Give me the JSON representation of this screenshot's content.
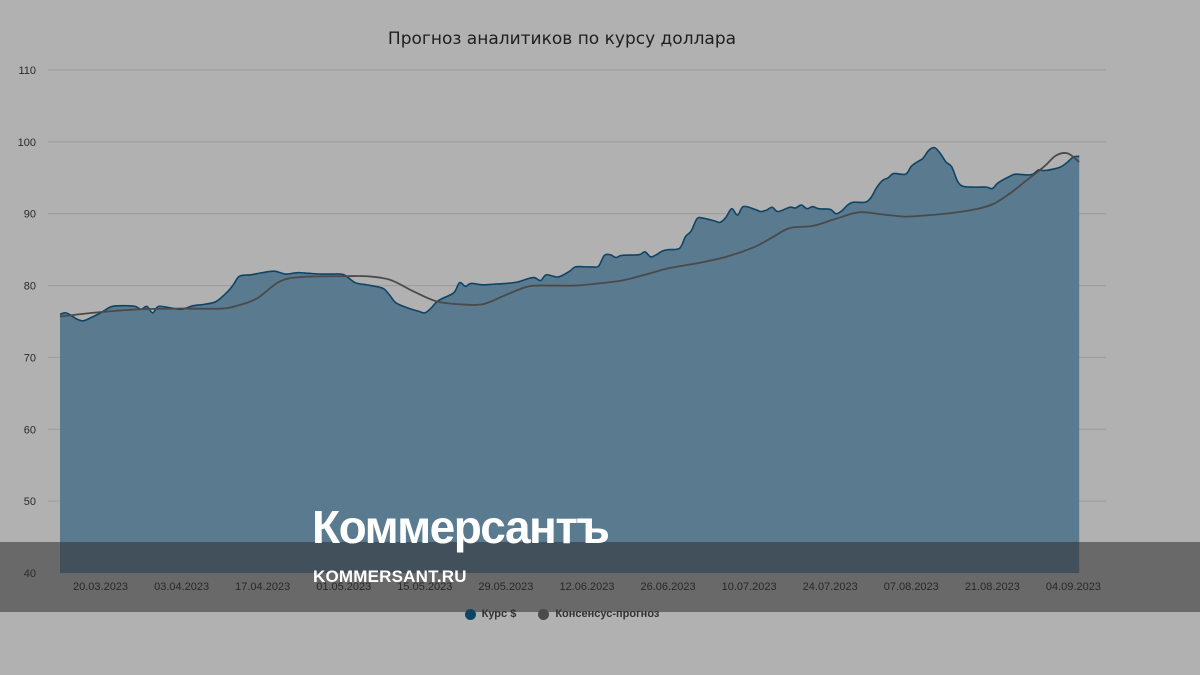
{
  "chart_data": {
    "type": "area",
    "title": "Прогноз аналитиков по курсу доллара",
    "ylim": [
      40,
      110
    ],
    "yticks": [
      40,
      50,
      60,
      70,
      80,
      90,
      100,
      110
    ],
    "grid": true,
    "legend_position": "bottom-center",
    "xtick_labels": [
      "20.03.2023",
      "03.04.2023",
      "17.04.2023",
      "01.05.2023",
      "15.05.2023",
      "29.05.2023",
      "12.06.2023",
      "26.06.2023",
      "10.07.2023",
      "24.07.2023",
      "07.08.2023",
      "21.08.2023",
      "04.09.2023"
    ],
    "x_start": "13.03.2023",
    "x_end": "06.09.2023",
    "series": [
      {
        "name": "Курс $",
        "kind": "area",
        "color": "#5a7a90",
        "line_color": "#0f4465",
        "points": [
          [
            "2023-03-13",
            76.0
          ],
          [
            "2023-03-14",
            76.2
          ],
          [
            "2023-03-15",
            75.8
          ],
          [
            "2023-03-16",
            75.3
          ],
          [
            "2023-03-17",
            75.1
          ],
          [
            "2023-03-18",
            75.4
          ],
          [
            "2023-03-20",
            76.2
          ],
          [
            "2023-03-21",
            76.7
          ],
          [
            "2023-03-22",
            77.1
          ],
          [
            "2023-03-24",
            77.2
          ],
          [
            "2023-03-26",
            77.1
          ],
          [
            "2023-03-27",
            76.7
          ],
          [
            "2023-03-28",
            77.1
          ],
          [
            "2023-03-29",
            76.2
          ],
          [
            "2023-03-30",
            77.1
          ],
          [
            "2023-04-01",
            76.9
          ],
          [
            "2023-04-03",
            76.7
          ],
          [
            "2023-04-05",
            77.2
          ],
          [
            "2023-04-07",
            77.4
          ],
          [
            "2023-04-09",
            77.8
          ],
          [
            "2023-04-11",
            79.2
          ],
          [
            "2023-04-12",
            80.2
          ],
          [
            "2023-04-13",
            81.3
          ],
          [
            "2023-04-15",
            81.5
          ],
          [
            "2023-04-17",
            81.8
          ],
          [
            "2023-04-19",
            82.0
          ],
          [
            "2023-04-21",
            81.6
          ],
          [
            "2023-04-23",
            81.8
          ],
          [
            "2023-04-25",
            81.7
          ],
          [
            "2023-04-27",
            81.6
          ],
          [
            "2023-04-29",
            81.6
          ],
          [
            "2023-05-01",
            81.5
          ],
          [
            "2023-05-03",
            80.4
          ],
          [
            "2023-05-05",
            80.1
          ],
          [
            "2023-05-07",
            79.8
          ],
          [
            "2023-05-08",
            79.5
          ],
          [
            "2023-05-09",
            78.6
          ],
          [
            "2023-05-10",
            77.6
          ],
          [
            "2023-05-12",
            76.9
          ],
          [
            "2023-05-14",
            76.4
          ],
          [
            "2023-05-15",
            76.2
          ],
          [
            "2023-05-16",
            76.8
          ],
          [
            "2023-05-17",
            77.7
          ],
          [
            "2023-05-18",
            78.2
          ],
          [
            "2023-05-20",
            79.0
          ],
          [
            "2023-05-21",
            80.4
          ],
          [
            "2023-05-22",
            79.9
          ],
          [
            "2023-05-23",
            80.3
          ],
          [
            "2023-05-25",
            80.1
          ],
          [
            "2023-05-27",
            80.2
          ],
          [
            "2023-05-29",
            80.3
          ],
          [
            "2023-05-31",
            80.5
          ],
          [
            "2023-06-02",
            81.0
          ],
          [
            "2023-06-03",
            81.1
          ],
          [
            "2023-06-04",
            80.7
          ],
          [
            "2023-06-05",
            81.5
          ],
          [
            "2023-06-07",
            81.2
          ],
          [
            "2023-06-09",
            82.0
          ],
          [
            "2023-06-10",
            82.6
          ],
          [
            "2023-06-12",
            82.6
          ],
          [
            "2023-06-13",
            82.6
          ],
          [
            "2023-06-14",
            82.7
          ],
          [
            "2023-06-15",
            84.2
          ],
          [
            "2023-06-16",
            84.3
          ],
          [
            "2023-06-17",
            83.9
          ],
          [
            "2023-06-18",
            84.2
          ],
          [
            "2023-06-21",
            84.3
          ],
          [
            "2023-06-22",
            84.7
          ],
          [
            "2023-06-23",
            84.0
          ],
          [
            "2023-06-24",
            84.3
          ],
          [
            "2023-06-25",
            84.8
          ],
          [
            "2023-06-26",
            85.0
          ],
          [
            "2023-06-28",
            85.2
          ],
          [
            "2023-06-29",
            86.8
          ],
          [
            "2023-06-30",
            87.6
          ],
          [
            "2023-07-01",
            89.3
          ],
          [
            "2023-07-02",
            89.4
          ],
          [
            "2023-07-04",
            89.0
          ],
          [
            "2023-07-05",
            88.8
          ],
          [
            "2023-07-06",
            89.5
          ],
          [
            "2023-07-07",
            90.7
          ],
          [
            "2023-07-08",
            89.8
          ],
          [
            "2023-07-09",
            91.0
          ],
          [
            "2023-07-11",
            90.6
          ],
          [
            "2023-07-12",
            90.3
          ],
          [
            "2023-07-13",
            90.5
          ],
          [
            "2023-07-14",
            90.9
          ],
          [
            "2023-07-15",
            90.3
          ],
          [
            "2023-07-17",
            90.9
          ],
          [
            "2023-07-18",
            90.8
          ],
          [
            "2023-07-19",
            91.2
          ],
          [
            "2023-07-20",
            90.7
          ],
          [
            "2023-07-21",
            91.0
          ],
          [
            "2023-07-22",
            90.7
          ],
          [
            "2023-07-24",
            90.6
          ],
          [
            "2023-07-25",
            90.0
          ],
          [
            "2023-07-26",
            90.4
          ],
          [
            "2023-07-27",
            91.2
          ],
          [
            "2023-07-28",
            91.6
          ],
          [
            "2023-07-30",
            91.6
          ],
          [
            "2023-07-31",
            92.2
          ],
          [
            "2023-08-01",
            93.6
          ],
          [
            "2023-08-02",
            94.6
          ],
          [
            "2023-08-03",
            95.0
          ],
          [
            "2023-08-04",
            95.6
          ],
          [
            "2023-08-06",
            95.5
          ],
          [
            "2023-08-07",
            96.6
          ],
          [
            "2023-08-08",
            97.2
          ],
          [
            "2023-08-09",
            97.7
          ],
          [
            "2023-08-10",
            98.8
          ],
          [
            "2023-08-11",
            99.2
          ],
          [
            "2023-08-12",
            98.4
          ],
          [
            "2023-08-13",
            97.2
          ],
          [
            "2023-08-14",
            96.5
          ],
          [
            "2023-08-15",
            94.5
          ],
          [
            "2023-08-16",
            93.8
          ],
          [
            "2023-08-18",
            93.7
          ],
          [
            "2023-08-20",
            93.7
          ],
          [
            "2023-08-21",
            93.5
          ],
          [
            "2023-08-22",
            94.3
          ],
          [
            "2023-08-24",
            95.2
          ],
          [
            "2023-08-25",
            95.5
          ],
          [
            "2023-08-27",
            95.4
          ],
          [
            "2023-08-28",
            95.5
          ],
          [
            "2023-08-29",
            96.1
          ],
          [
            "2023-08-30",
            96.0
          ],
          [
            "2023-09-01",
            96.3
          ],
          [
            "2023-09-02",
            96.6
          ],
          [
            "2023-09-03",
            97.2
          ],
          [
            "2023-09-04",
            97.9
          ],
          [
            "2023-09-05",
            98.0
          ]
        ]
      },
      {
        "name": "Консенсус-прогноз",
        "kind": "line",
        "color": "#4a4a4a",
        "points": [
          [
            "2023-03-13",
            75.7
          ],
          [
            "2023-03-20",
            76.3
          ],
          [
            "2023-03-27",
            76.7
          ],
          [
            "2023-04-03",
            76.8
          ],
          [
            "2023-04-10",
            76.8
          ],
          [
            "2023-04-13",
            77.3
          ],
          [
            "2023-04-16",
            78.2
          ],
          [
            "2023-04-20",
            80.6
          ],
          [
            "2023-04-24",
            81.2
          ],
          [
            "2023-05-01",
            81.3
          ],
          [
            "2023-05-05",
            81.3
          ],
          [
            "2023-05-09",
            80.8
          ],
          [
            "2023-05-13",
            79.2
          ],
          [
            "2023-05-17",
            77.8
          ],
          [
            "2023-05-21",
            77.4
          ],
          [
            "2023-05-25",
            77.4
          ],
          [
            "2023-05-29",
            78.7
          ],
          [
            "2023-06-02",
            79.9
          ],
          [
            "2023-06-06",
            80.0
          ],
          [
            "2023-06-10",
            80.0
          ],
          [
            "2023-06-14",
            80.3
          ],
          [
            "2023-06-18",
            80.7
          ],
          [
            "2023-06-22",
            81.5
          ],
          [
            "2023-06-26",
            82.4
          ],
          [
            "2023-07-01",
            83.1
          ],
          [
            "2023-07-06",
            84.0
          ],
          [
            "2023-07-11",
            85.4
          ],
          [
            "2023-07-14",
            86.7
          ],
          [
            "2023-07-17",
            88.0
          ],
          [
            "2023-07-21",
            88.3
          ],
          [
            "2023-07-25",
            89.3
          ],
          [
            "2023-07-29",
            90.2
          ],
          [
            "2023-08-02",
            89.9
          ],
          [
            "2023-08-06",
            89.6
          ],
          [
            "2023-08-10",
            89.8
          ],
          [
            "2023-08-14",
            90.1
          ],
          [
            "2023-08-18",
            90.6
          ],
          [
            "2023-08-21",
            91.3
          ],
          [
            "2023-08-24",
            92.8
          ],
          [
            "2023-08-27",
            94.7
          ],
          [
            "2023-08-30",
            96.6
          ],
          [
            "2023-09-01",
            98.1
          ],
          [
            "2023-09-03",
            98.4
          ],
          [
            "2023-09-05",
            97.2
          ]
        ]
      }
    ]
  },
  "watermark": {
    "logo": "Коммерсантъ",
    "url": "KOMMERSANT.RU"
  }
}
